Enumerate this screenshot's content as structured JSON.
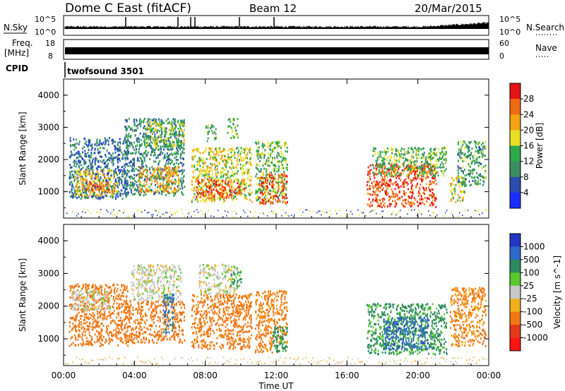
{
  "header": {
    "station": "Dome C East (fitACF)",
    "beam": "Beam 12",
    "date": "20/Mar/2015"
  },
  "strips": {
    "nsky_label": "N.Sky",
    "nsky_ticks": [
      "10^5",
      "10^0"
    ],
    "nsearch_label": "N.Search",
    "nsearch_ticks": [
      "10^5",
      "10^0"
    ],
    "freq_label": "Freq.",
    "freq_unit": "[MHz]",
    "freq_ticks": [
      "18",
      "8"
    ],
    "nave_label": "Nave",
    "nave_ticks": [
      "60",
      "0"
    ],
    "cpid_label": "CPID",
    "cpid_value": "twofsound 3501"
  },
  "colors": {
    "power": [
      "#1a2fff",
      "#2a4db0",
      "#3a8e63",
      "#2fa84a",
      "#e8e024",
      "#f5a214",
      "#ef6a14",
      "#e41414"
    ],
    "velocity": [
      "#2337c4",
      "#2e6ac7",
      "#2c8a5e",
      "#58c82c",
      "#c8c8c8",
      "#f0b01e",
      "#f07814",
      "#e23a1a",
      "#ff1414"
    ]
  },
  "chart_data": [
    {
      "type": "heatmap",
      "title": "",
      "xlabel": "Time UT",
      "ylabel": "Slant Range [km]",
      "colorbar_label": "Power [dB]",
      "x_ticks": [
        "00:00",
        "04:00",
        "08:00",
        "12:00",
        "16:00",
        "20:00",
        "00:00"
      ],
      "y_ticks": [
        "1000",
        "2000",
        "3000",
        "4000"
      ],
      "colorbar_ticks": [
        "4",
        "8",
        "12",
        "16",
        "20",
        "24",
        "28"
      ],
      "xlim": [
        0,
        24
      ],
      "ylim": [
        180,
        4500
      ],
      "clim": [
        0,
        32
      ],
      "regions": [
        {
          "t": [
            0.3,
            3.6
          ],
          "r": [
            800,
            2700
          ],
          "value": 8
        },
        {
          "t": [
            0.6,
            3.0
          ],
          "r": [
            900,
            1700
          ],
          "value": 20
        },
        {
          "t": [
            1.0,
            2.6
          ],
          "r": [
            1050,
            1350
          ],
          "value": 26
        },
        {
          "t": [
            3.4,
            6.8
          ],
          "r": [
            900,
            3300
          ],
          "value": 10
        },
        {
          "t": [
            4.2,
            6.5
          ],
          "r": [
            1000,
            1800
          ],
          "value": 22
        },
        {
          "t": [
            4.6,
            6.8
          ],
          "r": [
            2400,
            3200
          ],
          "value": 16
        },
        {
          "t": [
            7.2,
            10.6
          ],
          "r": [
            700,
            2400
          ],
          "value": 18
        },
        {
          "t": [
            7.4,
            10.2
          ],
          "r": [
            800,
            1400
          ],
          "value": 26
        },
        {
          "t": [
            8.0,
            8.6
          ],
          "r": [
            2600,
            3100
          ],
          "value": 14
        },
        {
          "t": [
            9.2,
            9.8
          ],
          "r": [
            2700,
            3300
          ],
          "value": 14
        },
        {
          "t": [
            10.8,
            12.6
          ],
          "r": [
            700,
            2600
          ],
          "value": 14
        },
        {
          "t": [
            11.0,
            12.6
          ],
          "r": [
            650,
            1600
          ],
          "value": 27
        },
        {
          "t": [
            17.1,
            21.0
          ],
          "r": [
            550,
            1900
          ],
          "value": 28
        },
        {
          "t": [
            17.4,
            21.6
          ],
          "r": [
            1500,
            2400
          ],
          "value": 14
        },
        {
          "t": [
            21.8,
            22.6
          ],
          "r": [
            700,
            1500
          ],
          "value": 18
        },
        {
          "t": [
            22.2,
            23.8
          ],
          "r": [
            1200,
            2600
          ],
          "value": 12
        }
      ]
    },
    {
      "type": "heatmap",
      "title": "",
      "xlabel": "Time UT",
      "ylabel": "Slant Range [km]",
      "colorbar_label": "Velocity [m s^-1]",
      "x_ticks": [
        "00:00",
        "04:00",
        "08:00",
        "12:00",
        "16:00",
        "20:00",
        "00:00"
      ],
      "y_ticks": [
        "1000",
        "2000",
        "3000",
        "4000"
      ],
      "colorbar_ticks": [
        "1000",
        "500",
        "100",
        "25",
        "-25",
        "-100",
        "-500",
        "-1000"
      ],
      "xlim": [
        0,
        24
      ],
      "ylim": [
        180,
        4500
      ],
      "regions": [
        {
          "t": [
            0.3,
            3.6
          ],
          "r": [
            800,
            2700
          ],
          "value": -300
        },
        {
          "t": [
            0.4,
            2.6
          ],
          "r": [
            1900,
            2500
          ],
          "value": 0
        },
        {
          "t": [
            3.4,
            6.8
          ],
          "r": [
            900,
            2200
          ],
          "value": -300
        },
        {
          "t": [
            3.8,
            6.6
          ],
          "r": [
            2200,
            3300
          ],
          "value": 0
        },
        {
          "t": [
            5.6,
            6.2
          ],
          "r": [
            1200,
            2400
          ],
          "value": 600
        },
        {
          "t": [
            7.2,
            10.6
          ],
          "r": [
            700,
            2400
          ],
          "value": -250
        },
        {
          "t": [
            7.6,
            9.8
          ],
          "r": [
            2400,
            3300
          ],
          "value": 0
        },
        {
          "t": [
            9.4,
            10.0
          ],
          "r": [
            2600,
            3100
          ],
          "value": 120
        },
        {
          "t": [
            10.8,
            12.6
          ],
          "r": [
            600,
            2500
          ],
          "value": -200
        },
        {
          "t": [
            11.8,
            12.6
          ],
          "r": [
            600,
            1400
          ],
          "value": 200
        },
        {
          "t": [
            17.1,
            21.6
          ],
          "r": [
            550,
            2100
          ],
          "value": 150
        },
        {
          "t": [
            18.0,
            20.6
          ],
          "r": [
            700,
            1700
          ],
          "value": 700
        },
        {
          "t": [
            21.8,
            23.8
          ],
          "r": [
            800,
            2600
          ],
          "value": -150
        }
      ]
    }
  ]
}
